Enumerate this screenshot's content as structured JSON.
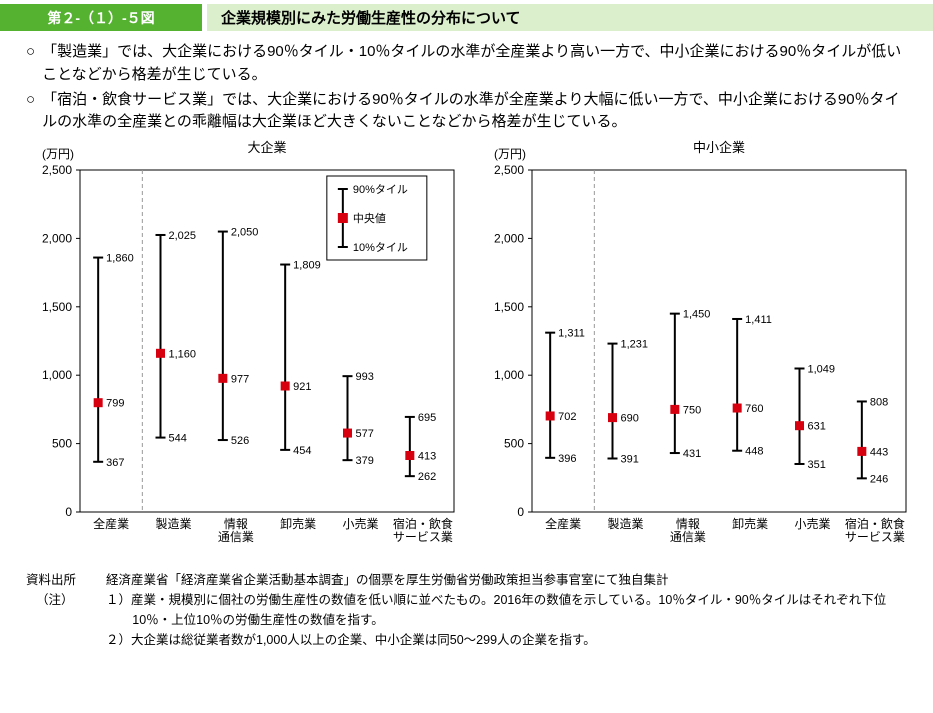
{
  "header": {
    "figure_label": "第２-（１）-５図",
    "title": "企業規模別にみた労働生産性の分布について"
  },
  "bullet_marker": "○",
  "bullets": [
    "「製造業」では、大企業における90％タイル・10％タイルの水準が全産業より高い一方で、中小企業における90％タイルが低いことなどから格差が生じている。",
    "「宿泊・飲食サービス業」では、大企業における90％タイルの水準が全産業より大幅に低い一方で、中小企業における90％タイルの水準の全産業との乖離幅は大企業ほど大きくないことなどから格差が生じている。"
  ],
  "chart_data": [
    {
      "type": "range-bar",
      "title": "大企業",
      "unit_label": "(万円)",
      "ylim": [
        0,
        2500
      ],
      "yticks": [
        0,
        500,
        1000,
        1500,
        2000,
        2500
      ],
      "grid": false,
      "legend": [
        "90%タイル",
        "中央値",
        "10%タイル"
      ],
      "legend_position": "top-right-inside",
      "categories": [
        [
          "全産業"
        ],
        [
          "製造業"
        ],
        [
          "情報",
          "通信業"
        ],
        [
          "卸売業"
        ],
        [
          "小売業"
        ],
        [
          "宿泊・飲食",
          "サービス業"
        ]
      ],
      "series": [
        {
          "name": "90%タイル",
          "values": [
            1860,
            2025,
            2050,
            1809,
            993,
            695
          ]
        },
        {
          "name": "中央値",
          "values": [
            799,
            1160,
            977,
            921,
            577,
            413
          ]
        },
        {
          "name": "10%タイル",
          "values": [
            367,
            544,
            526,
            454,
            379,
            262
          ]
        }
      ]
    },
    {
      "type": "range-bar",
      "title": "中小企業",
      "unit_label": "(万円)",
      "ylim": [
        0,
        2500
      ],
      "yticks": [
        0,
        500,
        1000,
        1500,
        2000,
        2500
      ],
      "grid": false,
      "categories": [
        [
          "全産業"
        ],
        [
          "製造業"
        ],
        [
          "情報",
          "通信業"
        ],
        [
          "卸売業"
        ],
        [
          "小売業"
        ],
        [
          "宿泊・飲食",
          "サービス業"
        ]
      ],
      "series": [
        {
          "name": "90%タイル",
          "values": [
            1311,
            1231,
            1450,
            1411,
            1049,
            808
          ]
        },
        {
          "name": "中央値",
          "values": [
            702,
            690,
            750,
            760,
            631,
            443
          ]
        },
        {
          "name": "10%タイル",
          "values": [
            396,
            391,
            431,
            448,
            351,
            246
          ]
        }
      ]
    }
  ],
  "footer": {
    "source_label": "資料出所",
    "source_text": "経済産業省「経済産業省企業活動基本調査」の個票を厚生労働省労働政策担当参事官室にて独自集計",
    "note_label": "（注）",
    "notes": [
      "１）産業・規模別に個社の労働生産性の数値を低い順に並べたもの。2016年の数値を示している。10％タイル・90％タイルはそれぞれ下位10％・上位10％の労働生産性の数値を指す。",
      "２）大企業は総従業者数が1,000人以上の企業、中小企業は同50～299人の企業を指す。"
    ]
  },
  "colors": {
    "header_green": "#55b230",
    "header_light": "#dcefcd",
    "median_red": "#d7000f"
  }
}
